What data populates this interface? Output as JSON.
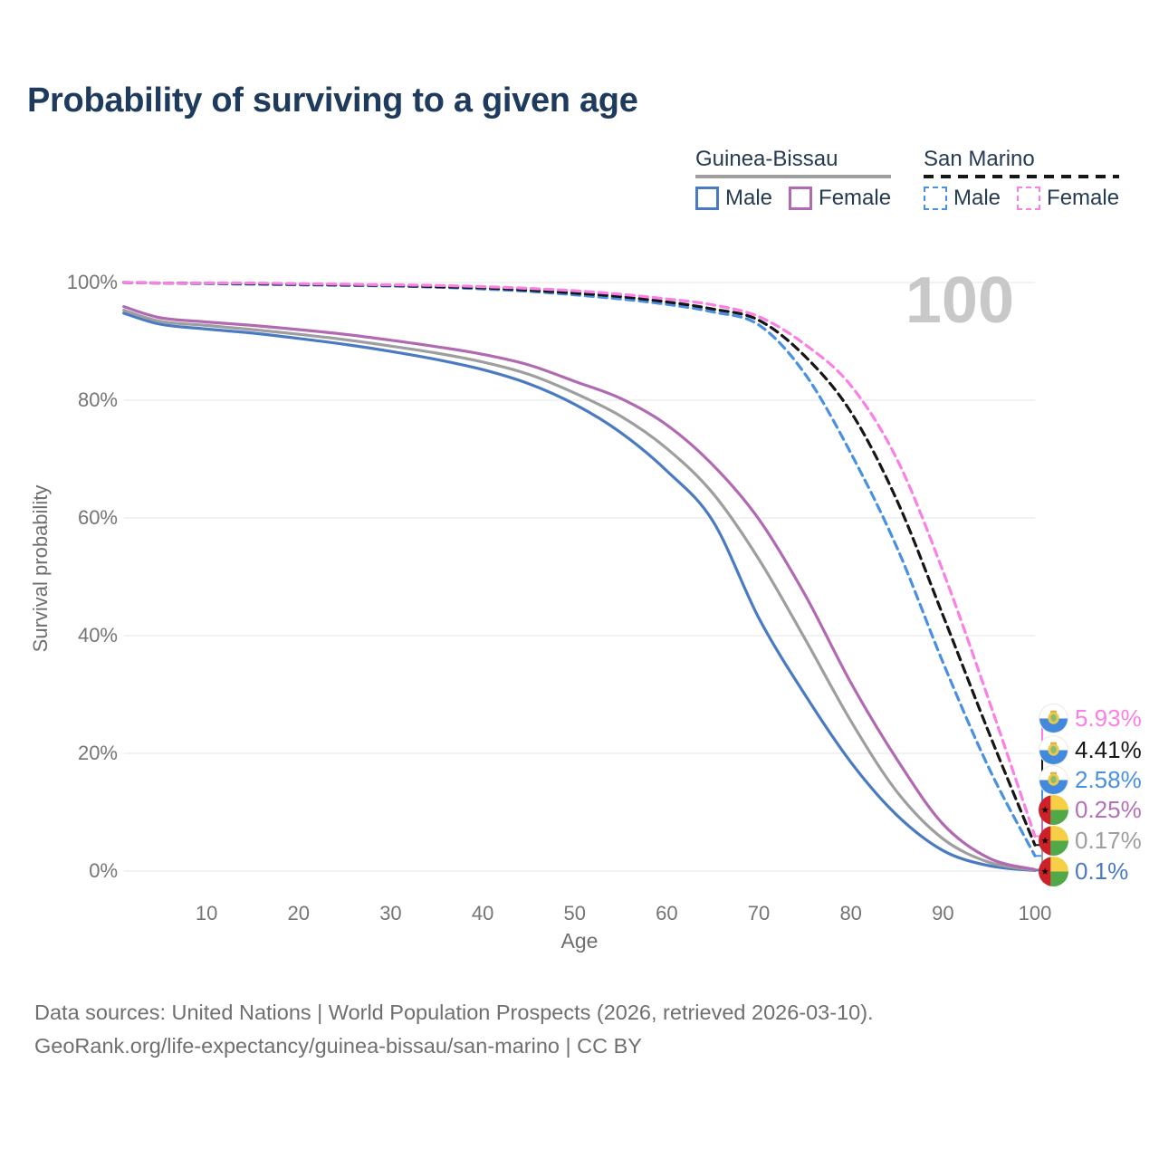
{
  "title": "Probability of surviving to a given age",
  "watermark": "100",
  "legend": {
    "groups": [
      {
        "name": "Guinea-Bissau",
        "line_style": "solid",
        "underline_color": "#9e9e9e",
        "items": [
          {
            "label": "Male",
            "color": "#4a7ac2"
          },
          {
            "label": "Female",
            "color": "#b16ab1"
          }
        ]
      },
      {
        "name": "San Marino",
        "line_style": "dashed",
        "underline_color": "#161616",
        "items": [
          {
            "label": "Male",
            "color": "#4a90e2"
          },
          {
            "label": "Female",
            "color": "#fb80e5"
          }
        ]
      }
    ]
  },
  "chart_data": {
    "type": "line",
    "title": "Probability of surviving to a given age",
    "xlabel": "Age",
    "ylabel": "Survival probability",
    "xlim": [
      0,
      100
    ],
    "ylim": [
      0,
      100
    ],
    "grid": "horizontal",
    "x_ticks": [
      10,
      20,
      30,
      40,
      50,
      60,
      70,
      80,
      90,
      100
    ],
    "y_ticks": [
      {
        "value": 0,
        "label": "0%"
      },
      {
        "value": 20,
        "label": "20%"
      },
      {
        "value": 40,
        "label": "40%"
      },
      {
        "value": 60,
        "label": "60%"
      },
      {
        "value": 80,
        "label": "80%"
      },
      {
        "value": 100,
        "label": "100%"
      }
    ],
    "ages": [
      1,
      5,
      10,
      15,
      20,
      25,
      30,
      35,
      40,
      45,
      50,
      55,
      60,
      65,
      70,
      75,
      80,
      85,
      90,
      95,
      100
    ],
    "series": [
      {
        "name": "Guinea-Bissau Male",
        "color": "#4a7ac2",
        "dashed": false,
        "values": [
          94.8,
          92.9,
          92.1,
          91.4,
          90.5,
          89.5,
          88.3,
          86.9,
          85.2,
          82.8,
          79.3,
          74.5,
          68.0,
          59.5,
          43.0,
          30.0,
          18.5,
          9.5,
          3.5,
          0.9,
          0.1
        ]
      },
      {
        "name": "Guinea-Bissau Both sexes",
        "color": "#9e9e9e",
        "dashed": false,
        "values": [
          95.3,
          93.4,
          92.7,
          92.0,
          91.2,
          90.3,
          89.2,
          88.0,
          86.5,
          84.4,
          81.2,
          77.3,
          71.8,
          64.2,
          53.0,
          39.5,
          25.5,
          13.5,
          5.5,
          1.5,
          0.17
        ]
      },
      {
        "name": "Guinea-Bissau Female",
        "color": "#b16ab1",
        "dashed": false,
        "values": [
          95.9,
          94.0,
          93.3,
          92.7,
          92.0,
          91.2,
          90.2,
          89.1,
          87.8,
          86.0,
          83.2,
          80.3,
          75.8,
          69.0,
          59.8,
          47.0,
          32.0,
          19.0,
          8.0,
          2.2,
          0.25
        ]
      },
      {
        "name": "San Marino Male",
        "color": "#4a90e2",
        "dashed": true,
        "values": [
          100,
          99.9,
          99.8,
          99.7,
          99.6,
          99.5,
          99.4,
          99.2,
          98.9,
          98.5,
          97.9,
          97.2,
          96.3,
          95.0,
          92.8,
          84.5,
          71.0,
          55.0,
          35.5,
          17.5,
          2.58
        ]
      },
      {
        "name": "San Marino Both sexes",
        "color": "#161616",
        "dashed": true,
        "values": [
          100,
          99.9,
          99.9,
          99.8,
          99.7,
          99.6,
          99.5,
          99.3,
          99.1,
          98.7,
          98.2,
          97.6,
          96.7,
          95.5,
          93.6,
          87.5,
          78.0,
          63.0,
          43.5,
          23.5,
          4.41
        ]
      },
      {
        "name": "San Marino Female",
        "color": "#fb80e5",
        "dashed": true,
        "values": [
          100,
          99.9,
          99.9,
          99.9,
          99.8,
          99.7,
          99.6,
          99.5,
          99.3,
          99.0,
          98.6,
          98.0,
          97.2,
          96.2,
          94.2,
          89.5,
          82.5,
          70.0,
          51.0,
          29.0,
          5.93
        ]
      }
    ]
  },
  "end_labels": [
    {
      "series": "San Marino Female",
      "value_label": "5.93%",
      "color": "#fb80e5",
      "flag": "san-marino"
    },
    {
      "series": "San Marino Both sexes",
      "value_label": "4.41%",
      "color": "#161616",
      "flag": "san-marino"
    },
    {
      "series": "San Marino Male",
      "value_label": "2.58%",
      "color": "#4a90e2",
      "flag": "san-marino"
    },
    {
      "series": "Guinea-Bissau Female",
      "value_label": "0.25%",
      "color": "#b671b6",
      "flag": "guinea-bissau"
    },
    {
      "series": "Guinea-Bissau Both sexes",
      "value_label": "0.17%",
      "color": "#9e9e9e",
      "flag": "guinea-bissau"
    },
    {
      "series": "Guinea-Bissau Male",
      "value_label": "0.1%",
      "color": "#4a7ac2",
      "flag": "guinea-bissau"
    }
  ],
  "footer": {
    "line1": "Data sources: United Nations | World Population Prospects (2026, retrieved 2026-03-10).",
    "line2": "GeoRank.org/life-expectancy/guinea-bissau/san-marino | CC BY"
  }
}
